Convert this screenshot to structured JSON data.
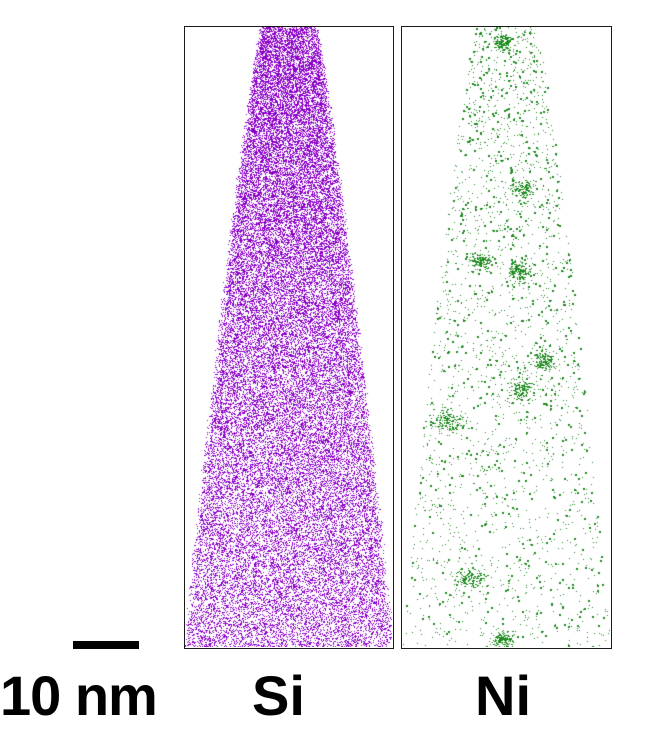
{
  "scale_bar": {
    "label": "10 nm"
  },
  "panels": [
    {
      "id": "si",
      "label": "Si",
      "dot_color": "#8b00c8"
    },
    {
      "id": "ni",
      "label": "Ni",
      "dot_color": "#1f8a1f"
    }
  ]
}
